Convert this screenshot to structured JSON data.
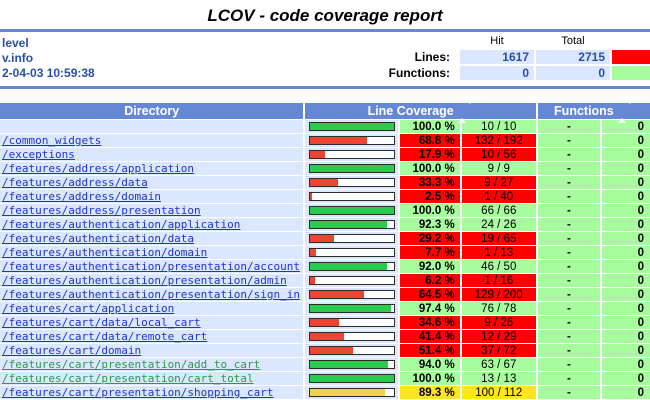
{
  "title": "LCOV - code coverage report",
  "colors": {
    "accent": "#6688d4",
    "row_bg": "#dae7fe",
    "cell": {
      "hi": "#a7fc9d",
      "med": "#ffe520",
      "lo": "#ff0000"
    },
    "bar": {
      "hi": "#2bcb4e",
      "med": "#efd24b",
      "lo": "#ee4433"
    },
    "link_blue": "#2233cc",
    "link_visited_green": "#2e9949"
  },
  "summary": {
    "left_lines": [
      "level",
      "v.info",
      "2-04-03 10:59:38"
    ],
    "col_headers": {
      "hit": "Hit",
      "total": "Total"
    },
    "rows": [
      {
        "label": "Lines:",
        "hit": "1617",
        "total": "2715",
        "status_color": "#ff0000"
      },
      {
        "label": "Functions:",
        "hit": "0",
        "total": "0",
        "status_color": "#a7fc9d"
      }
    ]
  },
  "table": {
    "headers": {
      "directory": "Directory",
      "line_coverage": "Line Coverage",
      "functions": "Functions"
    },
    "rows": [
      {
        "dir": "",
        "pct": 100.0,
        "pct_label": "100.0 %",
        "ratio": "10 / 10",
        "level": "hi",
        "functions_pct": "-",
        "functions_count": "0",
        "visited": false
      },
      {
        "dir": "/common_widgets",
        "pct": 68.8,
        "pct_label": "68.8 %",
        "ratio": "132 / 192",
        "level": "lo",
        "functions_pct": "-",
        "functions_count": "0",
        "visited": false
      },
      {
        "dir": "/exceptions",
        "pct": 17.9,
        "pct_label": "17.9 %",
        "ratio": "10 / 56",
        "level": "lo",
        "functions_pct": "-",
        "functions_count": "0",
        "visited": false
      },
      {
        "dir": "/features/address/application",
        "pct": 100.0,
        "pct_label": "100.0 %",
        "ratio": "9 / 9",
        "level": "hi",
        "functions_pct": "-",
        "functions_count": "0",
        "visited": false
      },
      {
        "dir": "/features/address/data",
        "pct": 33.3,
        "pct_label": "33.3 %",
        "ratio": "9 / 27",
        "level": "lo",
        "functions_pct": "-",
        "functions_count": "0",
        "visited": false
      },
      {
        "dir": "/features/address/domain",
        "pct": 2.5,
        "pct_label": "2.5 %",
        "ratio": "1 / 40",
        "level": "lo",
        "functions_pct": "-",
        "functions_count": "0",
        "visited": false
      },
      {
        "dir": "/features/address/presentation",
        "pct": 100.0,
        "pct_label": "100.0 %",
        "ratio": "66 / 66",
        "level": "hi",
        "functions_pct": "-",
        "functions_count": "0",
        "visited": false
      },
      {
        "dir": "/features/authentication/application",
        "pct": 92.3,
        "pct_label": "92.3 %",
        "ratio": "24 / 26",
        "level": "hi",
        "functions_pct": "-",
        "functions_count": "0",
        "visited": false
      },
      {
        "dir": "/features/authentication/data",
        "pct": 29.2,
        "pct_label": "29.2 %",
        "ratio": "19 / 65",
        "level": "lo",
        "functions_pct": "-",
        "functions_count": "0",
        "visited": false
      },
      {
        "dir": "/features/authentication/domain",
        "pct": 7.7,
        "pct_label": "7.7 %",
        "ratio": "1 / 13",
        "level": "lo",
        "functions_pct": "-",
        "functions_count": "0",
        "visited": false
      },
      {
        "dir": "/features/authentication/presentation/account",
        "pct": 92.0,
        "pct_label": "92.0 %",
        "ratio": "46 / 50",
        "level": "hi",
        "functions_pct": "-",
        "functions_count": "0",
        "visited": false
      },
      {
        "dir": "/features/authentication/presentation/admin",
        "pct": 6.2,
        "pct_label": "6.2 %",
        "ratio": "1 / 16",
        "level": "lo",
        "functions_pct": "-",
        "functions_count": "0",
        "visited": false
      },
      {
        "dir": "/features/authentication/presentation/sign_in",
        "pct": 64.5,
        "pct_label": "64.5 %",
        "ratio": "129 / 200",
        "level": "lo",
        "functions_pct": "-",
        "functions_count": "0",
        "visited": false
      },
      {
        "dir": "/features/cart/application",
        "pct": 97.4,
        "pct_label": "97.4 %",
        "ratio": "76 / 78",
        "level": "hi",
        "functions_pct": "-",
        "functions_count": "0",
        "visited": false
      },
      {
        "dir": "/features/cart/data/local_cart",
        "pct": 34.6,
        "pct_label": "34.6 %",
        "ratio": "9 / 26",
        "level": "lo",
        "functions_pct": "-",
        "functions_count": "0",
        "visited": false
      },
      {
        "dir": "/features/cart/data/remote_cart",
        "pct": 41.4,
        "pct_label": "41.4 %",
        "ratio": "12 / 29",
        "level": "lo",
        "functions_pct": "-",
        "functions_count": "0",
        "visited": false
      },
      {
        "dir": "/features/cart/domain",
        "pct": 51.4,
        "pct_label": "51.4 %",
        "ratio": "37 / 72",
        "level": "lo",
        "functions_pct": "-",
        "functions_count": "0",
        "visited": false
      },
      {
        "dir": "/features/cart/presentation/add_to_cart",
        "pct": 94.0,
        "pct_label": "94.0 %",
        "ratio": "63 / 67",
        "level": "hi",
        "functions_pct": "-",
        "functions_count": "0",
        "visited": true
      },
      {
        "dir": "/features/cart/presentation/cart_total",
        "pct": 100.0,
        "pct_label": "100.0 %",
        "ratio": "13 / 13",
        "level": "hi",
        "functions_pct": "-",
        "functions_count": "0",
        "visited": true
      },
      {
        "dir": "/features/cart/presentation/shopping_cart",
        "pct": 89.3,
        "pct_label": "89.3 %",
        "ratio": "100 / 112",
        "level": "med",
        "functions_pct": "-",
        "functions_count": "0",
        "visited": false
      }
    ]
  }
}
